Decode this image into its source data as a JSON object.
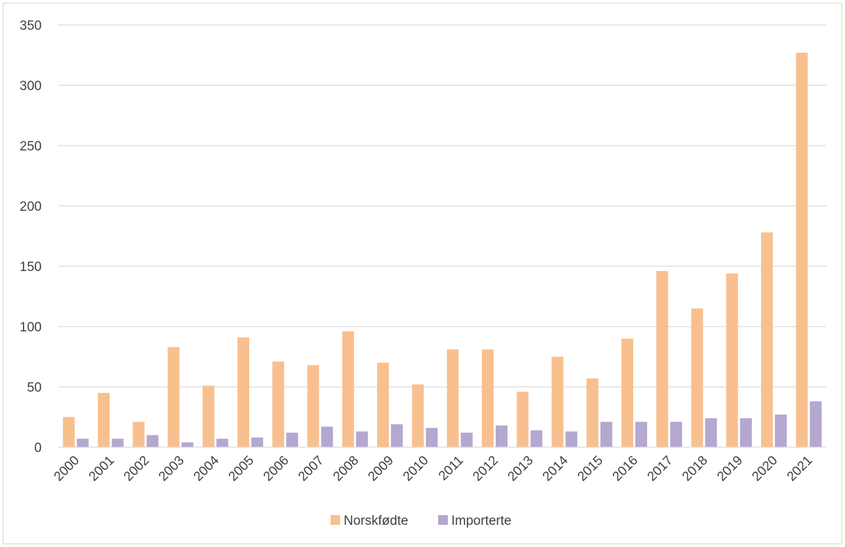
{
  "chart_data": {
    "type": "bar",
    "categories": [
      "2000",
      "2001",
      "2002",
      "2003",
      "2004",
      "2005",
      "2006",
      "2007",
      "2008",
      "2009",
      "2010",
      "2011",
      "2012",
      "2013",
      "2014",
      "2015",
      "2016",
      "2017",
      "2018",
      "2019",
      "2020",
      "2021"
    ],
    "series": [
      {
        "name": "Norskfødte",
        "color": "#f9c08f",
        "values": [
          25,
          45,
          21,
          83,
          51,
          91,
          71,
          68,
          96,
          70,
          52,
          81,
          81,
          46,
          75,
          57,
          90,
          146,
          115,
          144,
          178,
          327
        ]
      },
      {
        "name": "Importerte",
        "color": "#b4a7d0",
        "values": [
          7,
          7,
          10,
          4,
          7,
          8,
          12,
          17,
          13,
          19,
          16,
          12,
          18,
          14,
          13,
          21,
          21,
          21,
          24,
          24,
          27,
          38
        ]
      }
    ],
    "ylim": [
      0,
      350
    ],
    "yticks": [
      0,
      50,
      100,
      150,
      200,
      250,
      300,
      350
    ],
    "grid": true,
    "legend": "bottom-center",
    "title": "",
    "xlabel": "",
    "ylabel": ""
  }
}
